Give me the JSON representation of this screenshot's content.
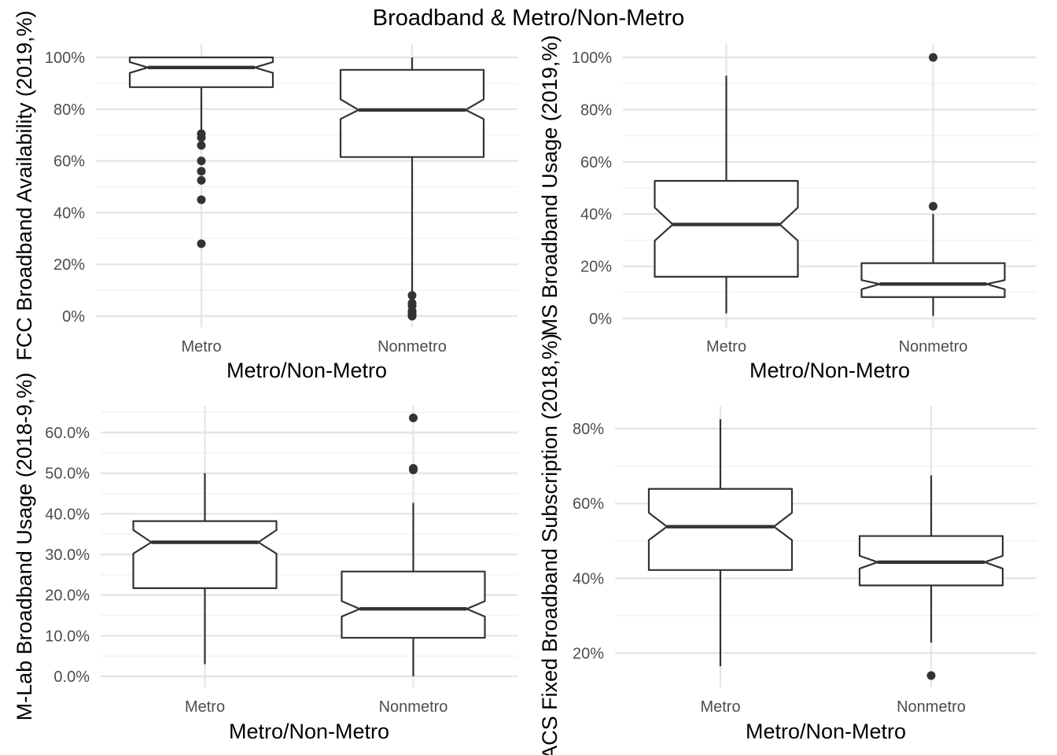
{
  "figure": {
    "title": "Broadband & Metro/Non-Metro"
  },
  "chart_data": [
    {
      "type": "boxplot",
      "notched": true,
      "xlabel": "Metro/Non-Metro",
      "ylabel": "FCC Broadband Availability (2019,%)",
      "ylim": [
        0,
        1
      ],
      "yticks": [
        0,
        0.2,
        0.4,
        0.6,
        0.8,
        1.0
      ],
      "ytick_labels": [
        "0%",
        "20%",
        "40%",
        "60%",
        "80%",
        "100%"
      ],
      "categories": [
        "Metro",
        "Nonmetro"
      ],
      "boxes": [
        {
          "category": "Metro",
          "whisker_low": 0.715,
          "q1": 0.885,
          "median": 0.961,
          "q3": 1.0,
          "whisker_high": 1.0,
          "notch_low": 0.94,
          "notch_high": 0.982,
          "outliers": [
            0.28,
            0.45,
            0.525,
            0.56,
            0.6,
            0.66,
            0.69,
            0.705
          ]
        },
        {
          "category": "Nonmetro",
          "whisker_low": 0.09,
          "q1": 0.615,
          "median": 0.797,
          "q3": 0.952,
          "whisker_high": 1.0,
          "notch_low": 0.762,
          "notch_high": 0.838,
          "outliers": [
            0.0,
            0.005,
            0.01,
            0.02,
            0.04,
            0.05,
            0.08
          ]
        }
      ]
    },
    {
      "type": "boxplot",
      "notched": true,
      "xlabel": "Metro/Non-Metro",
      "ylabel": "MS Broadband Usage (2019,%)",
      "ylim": [
        0,
        1
      ],
      "yticks": [
        0,
        0.2,
        0.4,
        0.6,
        0.8,
        1.0
      ],
      "ytick_labels": [
        "0%",
        "20%",
        "40%",
        "60%",
        "80%",
        "100%"
      ],
      "categories": [
        "Metro",
        "Nonmetro"
      ],
      "boxes": [
        {
          "category": "Metro",
          "whisker_low": 0.02,
          "q1": 0.16,
          "median": 0.36,
          "q3": 0.527,
          "whisker_high": 0.93,
          "notch_low": 0.298,
          "notch_high": 0.425,
          "outliers": []
        },
        {
          "category": "Nonmetro",
          "whisker_low": 0.01,
          "q1": 0.082,
          "median": 0.132,
          "q3": 0.212,
          "whisker_high": 0.4,
          "notch_low": 0.112,
          "notch_high": 0.147,
          "outliers": [
            0.43,
            1.0
          ]
        }
      ]
    },
    {
      "type": "boxplot",
      "notched": true,
      "xlabel": "Metro/Non-Metro",
      "ylabel": "M-Lab Broadband Usage (2018-9,%)",
      "ylim": [
        0,
        0.6
      ],
      "yticks": [
        0,
        0.1,
        0.2,
        0.3,
        0.4,
        0.5,
        0.6
      ],
      "ytick_labels": [
        "0.0%",
        "10.0%",
        "20.0%",
        "30.0%",
        "40.0%",
        "50.0%",
        "60.0%"
      ],
      "categories": [
        "Metro",
        "Nonmetro"
      ],
      "boxes": [
        {
          "category": "Metro",
          "whisker_low": 0.03,
          "q1": 0.217,
          "median": 0.33,
          "q3": 0.382,
          "whisker_high": 0.5,
          "notch_low": 0.302,
          "notch_high": 0.36,
          "outliers": []
        },
        {
          "category": "Nonmetro",
          "whisker_low": 0.0,
          "q1": 0.095,
          "median": 0.166,
          "q3": 0.258,
          "whisker_high": 0.427,
          "notch_low": 0.147,
          "notch_high": 0.185,
          "outliers": [
            0.508,
            0.512,
            0.636
          ]
        }
      ]
    },
    {
      "type": "boxplot",
      "notched": true,
      "xlabel": "Metro/Non-Metro",
      "ylabel": "ACS Fixed Broadband Subscription (2018,%)",
      "ylim": [
        0.14,
        0.8
      ],
      "yticks": [
        0.2,
        0.4,
        0.6,
        0.8
      ],
      "ytick_labels": [
        "20%",
        "40%",
        "60%",
        "80%"
      ],
      "categories": [
        "Metro",
        "Nonmetro"
      ],
      "boxes": [
        {
          "category": "Metro",
          "whisker_low": 0.165,
          "q1": 0.422,
          "median": 0.538,
          "q3": 0.639,
          "whisker_high": 0.825,
          "notch_low": 0.502,
          "notch_high": 0.575,
          "outliers": []
        },
        {
          "category": "Nonmetro",
          "whisker_low": 0.228,
          "q1": 0.381,
          "median": 0.443,
          "q3": 0.513,
          "whisker_high": 0.675,
          "notch_low": 0.426,
          "notch_high": 0.46,
          "outliers": [
            0.14
          ]
        }
      ]
    }
  ]
}
